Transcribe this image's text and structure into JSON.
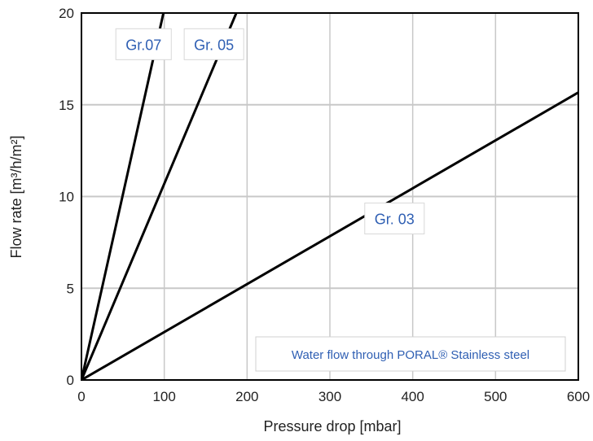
{
  "chart_data": {
    "type": "line",
    "xlabel": "Pressure drop [mbar]",
    "ylabel": "Flow rate [m³/h/m²]",
    "xlim": [
      0,
      600
    ],
    "ylim": [
      0,
      20
    ],
    "x_ticks": [
      0,
      100,
      200,
      300,
      400,
      500,
      600
    ],
    "y_ticks": [
      0,
      5,
      10,
      15,
      20
    ],
    "x_tick_labels": [
      "0",
      "100",
      "200",
      "300",
      "400",
      "500",
      "600"
    ],
    "y_tick_labels": [
      "0",
      "5",
      "10",
      "15",
      "20"
    ],
    "grid": true,
    "series": [
      {
        "name": "Gr.07",
        "x": [
          0,
          99
        ],
        "y": [
          0,
          20
        ],
        "label_at": [
          75,
          18.3
        ]
      },
      {
        "name": "Gr. 05",
        "x": [
          0,
          187
        ],
        "y": [
          0,
          20
        ],
        "label_at": [
          160,
          18.3
        ]
      },
      {
        "name": "Gr. 03",
        "x": [
          0,
          605
        ],
        "y": [
          0,
          15.8
        ],
        "label_at": [
          378,
          8.8
        ]
      }
    ],
    "annotation": "Water flow through PORAL® Stainless steel",
    "colors": {
      "line": "#000000",
      "grid": "#c8c8c8",
      "label_text": "#2f5fb3",
      "label_border": "#d8d8d8"
    }
  }
}
